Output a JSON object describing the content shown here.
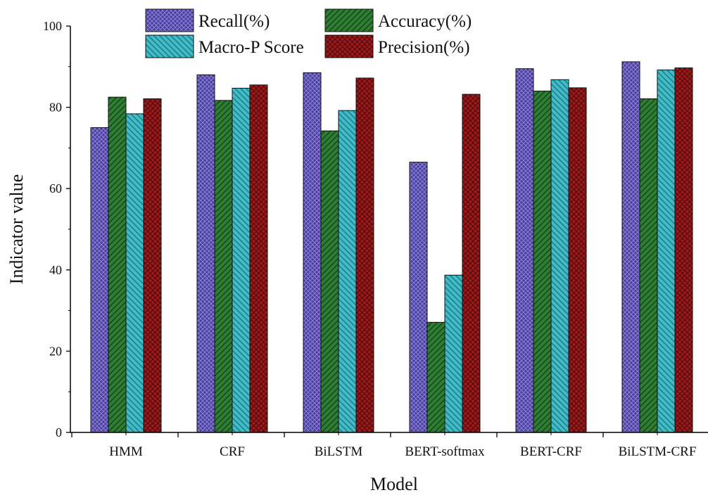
{
  "chart_data": {
    "type": "bar",
    "xlabel": "Model",
    "ylabel": "Indicator value",
    "ylim": [
      0,
      100
    ],
    "yticks": [
      "0",
      "20",
      "40",
      "60",
      "80",
      "100"
    ],
    "categories": [
      "HMM",
      "CRF",
      "BiLSTM",
      "BERT-softmax",
      "BERT-CRF",
      "BiLSTM-CRF"
    ],
    "series": [
      {
        "name": "Recall(%)",
        "color": "#4a3fa0",
        "pattern": "dots",
        "values": [
          75.0,
          88.0,
          88.5,
          66.5,
          89.5,
          91.2
        ]
      },
      {
        "name": "Accuracy(%)",
        "color": "#2f7d34",
        "pattern": "right-diagonal",
        "values": [
          82.5,
          81.7,
          74.2,
          27.1,
          84.0,
          82.1
        ]
      },
      {
        "name": "Macro-P Score",
        "color": "#3fbcc7",
        "pattern": "left-diagonal",
        "values": [
          78.4,
          84.7,
          79.2,
          38.7,
          86.8,
          89.2
        ]
      },
      {
        "name": "Precision(%)",
        "color": "#9b1b1b",
        "pattern": "crosshatch",
        "values": [
          82.1,
          85.5,
          87.2,
          83.2,
          84.8,
          89.7
        ]
      }
    ],
    "legend_position": "top",
    "grid": false
  }
}
